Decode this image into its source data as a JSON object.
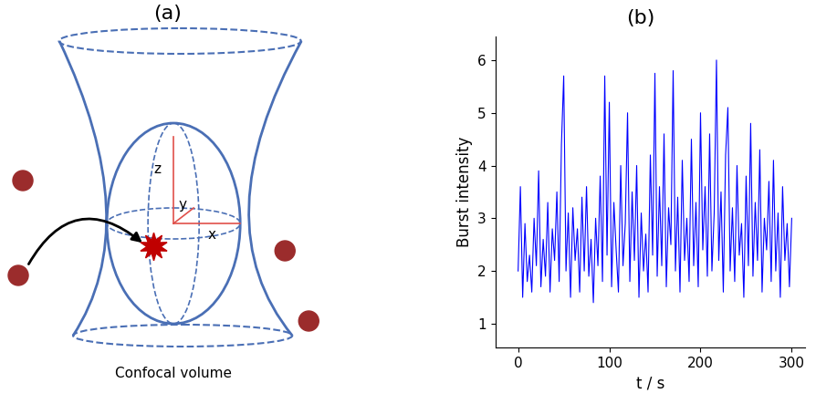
{
  "panel_a": {
    "label": "(a)",
    "caption": "Confocal volume",
    "axis_labels": {
      "z": "z",
      "y": "y",
      "x": "x"
    }
  },
  "panel_b": {
    "label": "(b)"
  },
  "chart_data": {
    "type": "line",
    "xlabel": "t / s",
    "ylabel": "Burst intensity",
    "color": "#0000ff",
    "x": [
      0,
      2.5,
      5,
      7.5,
      10,
      12.5,
      15,
      17.5,
      20,
      22.5,
      25,
      27.5,
      30,
      32.5,
      35,
      37.5,
      40,
      42.5,
      45,
      47.5,
      50,
      52.5,
      55,
      57.5,
      60,
      62.5,
      65,
      67.5,
      70,
      72.5,
      75,
      77.5,
      80,
      82.5,
      85,
      87.5,
      90,
      92.5,
      95,
      97.5,
      100,
      102.5,
      105,
      107.5,
      110,
      112.5,
      115,
      117.5,
      120,
      122.5,
      125,
      127.5,
      130,
      132.5,
      135,
      137.5,
      140,
      142.5,
      145,
      147.5,
      150,
      152.5,
      155,
      157.5,
      160,
      162.5,
      165,
      167.5,
      170,
      172.5,
      175,
      177.5,
      180,
      182.5,
      185,
      187.5,
      190,
      192.5,
      195,
      197.5,
      200,
      202.5,
      205,
      207.5,
      210,
      212.5,
      215,
      217.5,
      220,
      222.5,
      225,
      227.5,
      230,
      232.5,
      235,
      237.5,
      240,
      242.5,
      245,
      247.5,
      250,
      252.5,
      255,
      257.5,
      260,
      262.5,
      265,
      267.5,
      270,
      272.5,
      275,
      277.5,
      280,
      282.5,
      285,
      287.5,
      290,
      292.5,
      295,
      297.5,
      300
    ],
    "values": [
      2.0,
      3.6,
      1.5,
      2.9,
      1.8,
      2.3,
      1.6,
      3.0,
      2.1,
      3.9,
      1.7,
      2.6,
      1.9,
      3.3,
      1.6,
      2.8,
      2.2,
      3.5,
      1.8,
      4.4,
      5.7,
      2.0,
      3.1,
      1.5,
      3.2,
      2.2,
      2.8,
      1.6,
      3.4,
      2.0,
      3.6,
      1.9,
      2.6,
      1.4,
      3.0,
      2.1,
      3.8,
      1.8,
      5.7,
      2.3,
      5.2,
      1.7,
      3.3,
      2.4,
      1.6,
      4.0,
      2.1,
      2.9,
      5.0,
      1.8,
      3.5,
      2.2,
      4.0,
      1.5,
      3.1,
      2.0,
      2.7,
      1.6,
      4.2,
      2.3,
      5.75,
      1.9,
      3.6,
      2.1,
      4.6,
      1.7,
      3.2,
      2.5,
      5.8,
      2.0,
      3.4,
      1.6,
      4.1,
      2.2,
      3.0,
      1.8,
      4.5,
      2.1,
      3.3,
      1.7,
      5.0,
      2.4,
      3.6,
      1.9,
      4.6,
      2.0,
      3.1,
      6.0,
      2.2,
      3.5,
      1.6,
      4.2,
      5.1,
      2.0,
      3.2,
      1.8,
      4.0,
      2.3,
      2.9,
      1.5,
      3.8,
      2.1,
      4.8,
      1.9,
      3.3,
      2.2,
      4.3,
      1.6,
      3.0,
      2.4,
      3.7,
      1.8,
      4.1,
      2.0,
      3.1,
      1.5,
      3.6,
      2.2,
      2.9,
      1.7,
      3.0
    ],
    "xlim": [
      -25,
      315
    ],
    "xticks": [
      0,
      100,
      200,
      300
    ],
    "ylim": [
      0.55,
      6.45
    ],
    "yticks": [
      1,
      2,
      3,
      4,
      5,
      6
    ]
  }
}
